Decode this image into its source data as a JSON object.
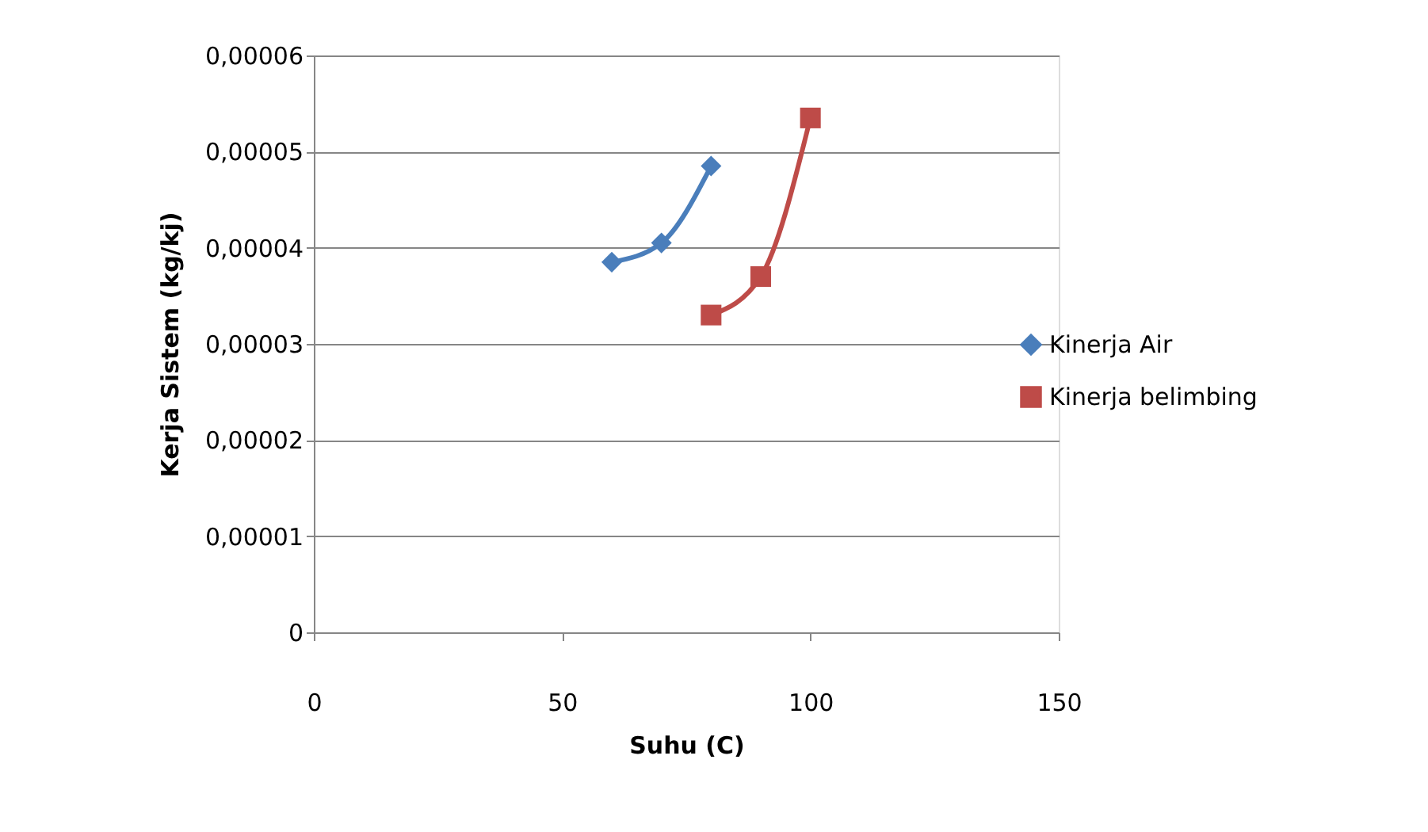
{
  "chart_data": {
    "type": "line",
    "xlabel": "Suhu  (C)",
    "ylabel": "Kerja Sistem  (kg/kj)",
    "series": [
      {
        "name": "Kinerja Air",
        "color": "#4a7ebb",
        "marker": "diamond",
        "x": [
          60,
          70,
          80
        ],
        "values": [
          3.85e-05,
          4.05e-05,
          4.85e-05
        ]
      },
      {
        "name": "Kinerja belimbing",
        "color": "#be4b48",
        "marker": "square",
        "x": [
          80,
          90,
          100
        ],
        "values": [
          3.3e-05,
          3.7e-05,
          5.35e-05
        ]
      }
    ],
    "xlim": [
      0,
      150
    ],
    "xticks": [
      0,
      50,
      100,
      150
    ],
    "ylim": [
      0,
      6e-05
    ],
    "yticks": [
      0,
      {
        "value": 1e-05,
        "label": "0,00001"
      },
      {
        "value": 2e-05,
        "label": "0,00002"
      },
      {
        "value": 3e-05,
        "label": "0,00003"
      },
      {
        "value": 4e-05,
        "label": "0,00004"
      },
      {
        "value": 5e-05,
        "label": "0,00005"
      },
      {
        "value": 6e-05,
        "label": "0,00006"
      }
    ],
    "grid": "y",
    "legend": "right",
    "line_style": "solid"
  }
}
